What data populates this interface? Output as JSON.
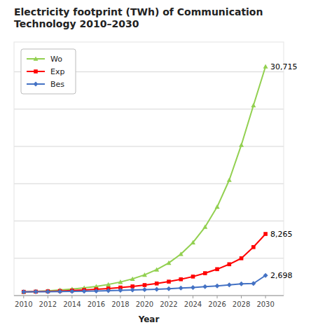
{
  "chart_data": {
    "type": "line",
    "title": "Electricity footprint  (TWh) of Communication\nTechnology 2010–2030",
    "x_label": "Year",
    "x": [
      2010,
      2011,
      2012,
      2013,
      2014,
      2015,
      2016,
      2017,
      2018,
      2019,
      2020,
      2021,
      2022,
      2023,
      2024,
      2025,
      2026,
      2027,
      2028,
      2029,
      2030
    ],
    "series": [
      {
        "name": "Wo",
        "color": "#92D050",
        "marker": "triangle",
        "values": [
          500,
          560,
          640,
          740,
          870,
          1030,
          1230,
          1490,
          1820,
          2240,
          2780,
          3480,
          4380,
          5560,
          7120,
          9200,
          11900,
          15500,
          20200,
          25500,
          30715
        ]
      },
      {
        "name": "Exp",
        "color": "#FF0000",
        "marker": "square",
        "values": [
          500,
          530,
          570,
          620,
          680,
          750,
          840,
          950,
          1080,
          1230,
          1410,
          1620,
          1870,
          2180,
          2550,
          3000,
          3540,
          4200,
          5000,
          6500,
          8265
        ]
      },
      {
        "name": "Bes",
        "color": "#4472C4",
        "marker": "diamond",
        "values": [
          500,
          510,
          525,
          545,
          565,
          590,
          620,
          655,
          695,
          740,
          790,
          850,
          920,
          1000,
          1090,
          1190,
          1300,
          1430,
          1570,
          1620,
          2698
        ]
      }
    ],
    "annotations": [
      {
        "text": "30,715",
        "x": 2030,
        "y": 30715
      },
      {
        "text": "8,265",
        "x": 2030,
        "y": 8265
      },
      {
        "text": "2,698",
        "x": 2030,
        "y": 2698
      }
    ],
    "xlim": [
      2009.2,
      2031.5
    ],
    "xticks": [
      2010,
      2012,
      2014,
      2016,
      2018,
      2020,
      2022,
      2024,
      2026,
      2028,
      2030
    ],
    "ylim": [
      0,
      34000
    ],
    "yticks": [
      0,
      5000,
      10000,
      15000,
      20000,
      25000,
      30000
    ],
    "tick_labels": "x",
    "grid": true,
    "legend": "upper left"
  }
}
